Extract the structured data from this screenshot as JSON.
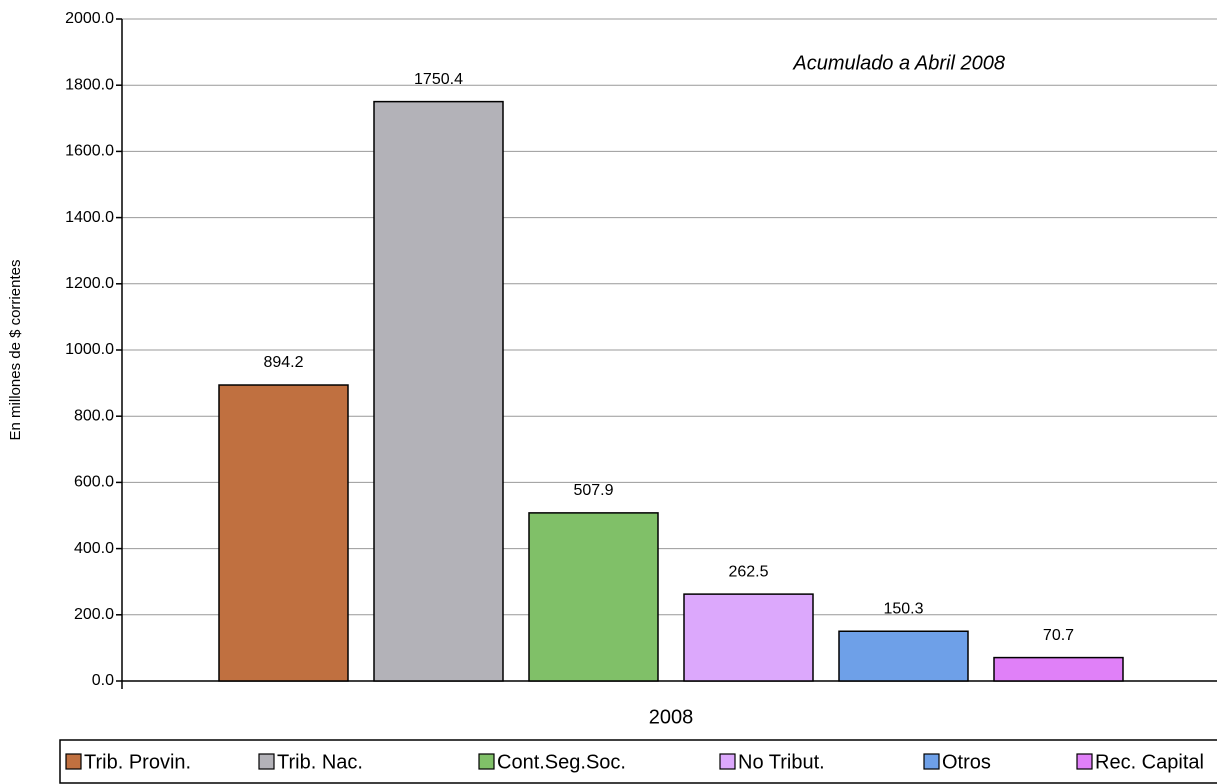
{
  "chart_data": {
    "type": "bar",
    "annotation": "Acumulado a Abril 2008",
    "y_label": "En millones de $ corrientes",
    "categories": [
      "2008"
    ],
    "series": [
      {
        "name": "Trib. Provin.",
        "color": "#c07040",
        "values": [
          894.2
        ]
      },
      {
        "name": "Trib. Nac.",
        "color": "#b3b2b8",
        "values": [
          1750.4
        ]
      },
      {
        "name": "Cont.Seg.Soc.",
        "color": "#80c068",
        "values": [
          507.9
        ]
      },
      {
        "name": "No Tribut.",
        "color": "#dca8fc",
        "values": [
          262.5
        ]
      },
      {
        "name": "Otros",
        "color": "#6ea0e8",
        "values": [
          150.3
        ]
      },
      {
        "name": "Rec. Capital",
        "color": "#e080f8",
        "values": [
          70.7
        ]
      }
    ],
    "ylim": [
      0,
      2000
    ],
    "yticks": [
      {
        "value": 0,
        "label": "0.0"
      },
      {
        "value": 200,
        "label": "200.0"
      },
      {
        "value": 400,
        "label": "400.0"
      },
      {
        "value": 600,
        "label": "600.0"
      },
      {
        "value": 800,
        "label": "800.0"
      },
      {
        "value": 1000,
        "label": "1000.0"
      },
      {
        "value": 1200,
        "label": "1200.0"
      },
      {
        "value": 1400,
        "label": "1400.0"
      },
      {
        "value": 1600,
        "label": "1600.0"
      },
      {
        "value": 1800,
        "label": "1800.0"
      },
      {
        "value": 2000,
        "label": "2000.0"
      }
    ],
    "grid": true,
    "legend": "bottom"
  }
}
